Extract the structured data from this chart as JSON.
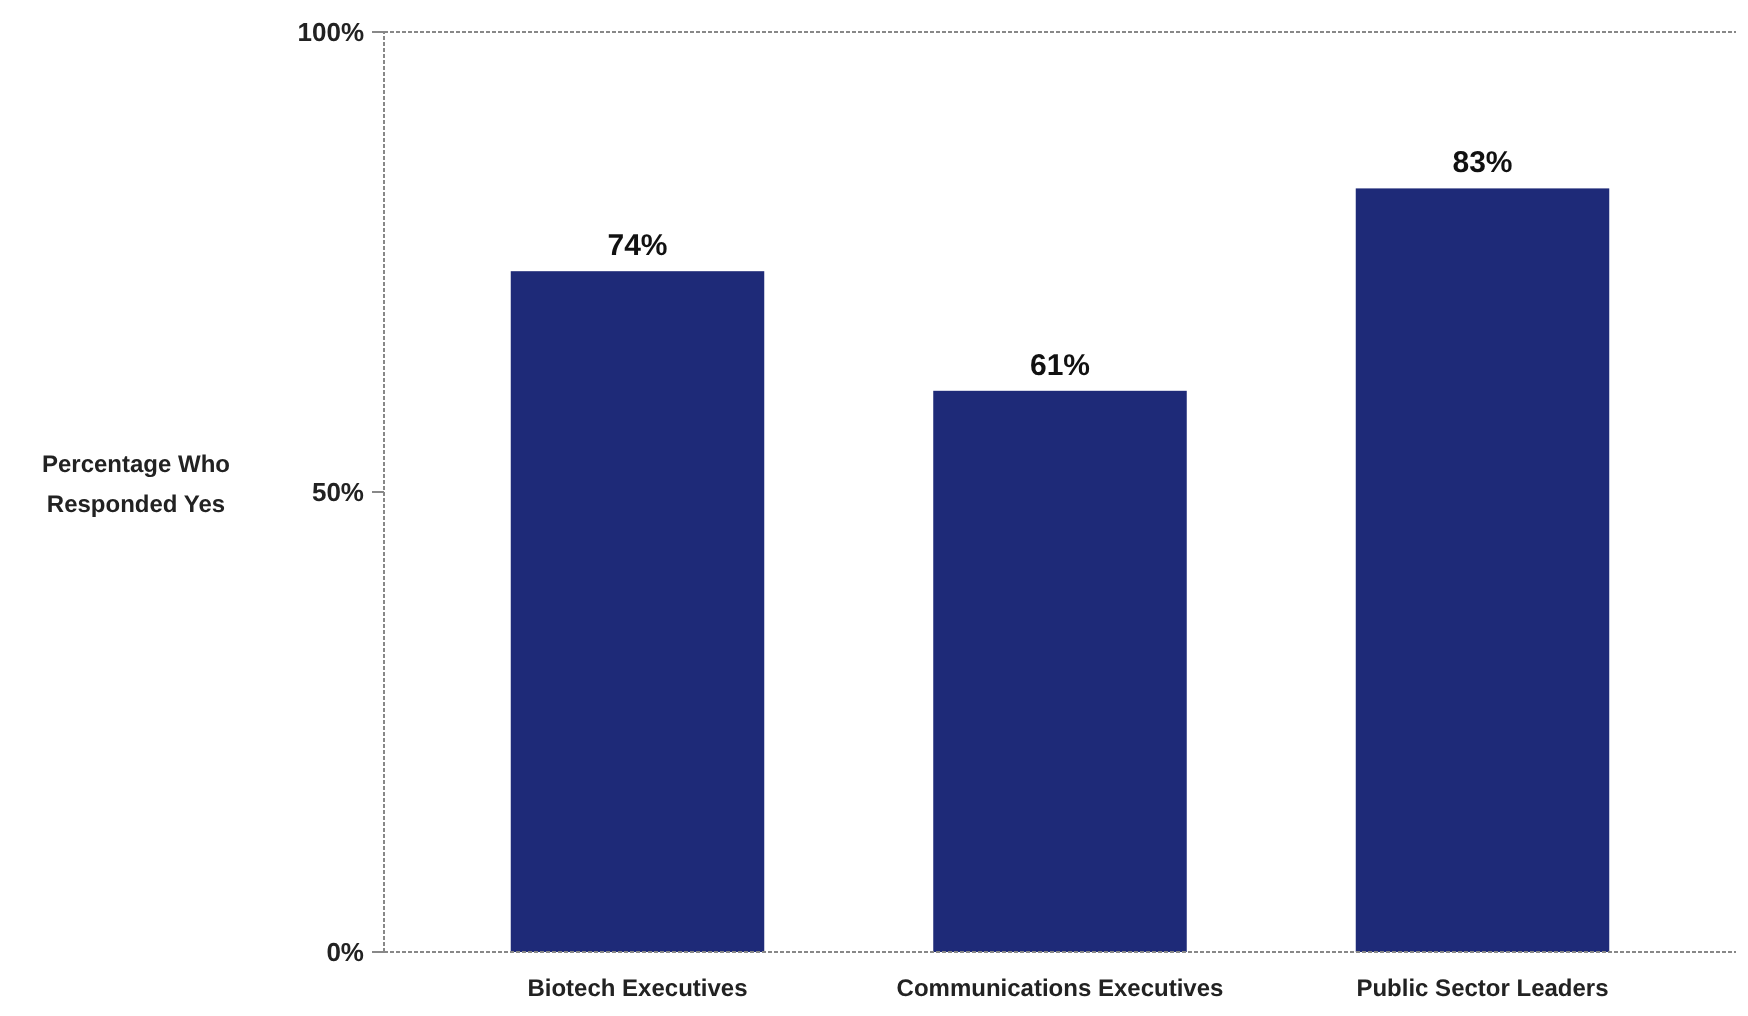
{
  "chart_data": {
    "type": "bar",
    "ylabel": "Percentage Who Responded Yes",
    "categories": [
      "Biotech Executives",
      "Communications Executives",
      "Public Sector Leaders"
    ],
    "values": [
      74,
      61,
      83
    ],
    "color": "#1e2a78",
    "ylim": [
      0,
      100
    ],
    "yticks": [
      {
        "value": 0,
        "label": "0%"
      },
      {
        "value": 50,
        "label": "50%"
      },
      {
        "value": 100,
        "label": "100%"
      }
    ],
    "value_labels": [
      "74%",
      "61%",
      "83%"
    ]
  }
}
